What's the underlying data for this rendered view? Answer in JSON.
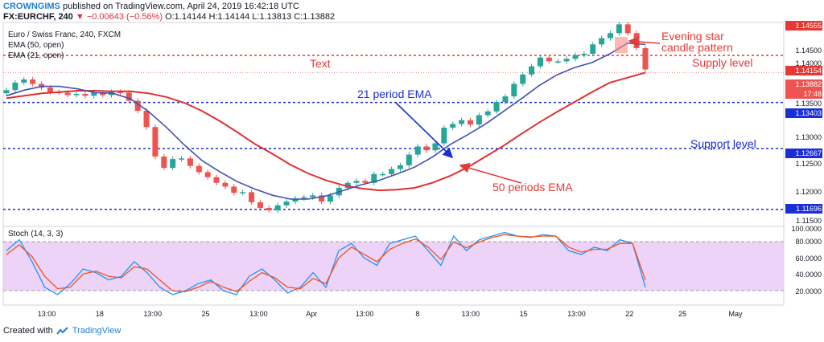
{
  "header": {
    "user": "CROWNGIMS",
    "published": "published on TradingView.com, April 24, 2019 16:42:18 UTC",
    "symbol": "FX:EURCHF, 240",
    "change_icon": "down-triangle-icon",
    "change": "−0.00643 (−0.56%)",
    "ohlc": "O:1.14144 H:1.14144 L:1.13813 C:1.13882"
  },
  "legend": {
    "title": "Euro / Swiss Franc, 240, FXCM",
    "ema50": "EMA (50, open)",
    "ema21": "EMA (21, open)"
  },
  "annotations": {
    "text": "Text",
    "supply": "Supply level",
    "support": "Support level",
    "ema21": "21 period EMA",
    "ema50": "50 periods EMA",
    "evening1": "Evening star",
    "evening2": "candle pattern"
  },
  "price_axis": {
    "top_tag": "1.14555",
    "tick_1_145": "1.14500",
    "tick_1_140": "1.14000",
    "tag_supply": "1.14154",
    "tag_current": "1.13882",
    "countdown": "17:48",
    "tick_1_135": "1.13500",
    "tag_support1": "1.13403",
    "tick_1_130": "1.13000",
    "tag_support2": "1.12667",
    "tick_1_125": "1.12500",
    "tick_1_120": "1.12000",
    "tag_support3": "1.11696",
    "tick_1_115": "1.11500"
  },
  "stoch": {
    "label": "Stoch (14, 3, 3)",
    "t100": "100.0000",
    "t80": "80.0000",
    "t60": "60.0000",
    "t40": "40.0000",
    "t20": "20.0000"
  },
  "time_axis": [
    "13:00",
    "18",
    "13:00",
    "25",
    "13:00",
    "Apr",
    "13:00",
    "8",
    "13:00",
    "15",
    "13:00",
    "22",
    "25",
    "May"
  ],
  "footer": {
    "created": "Created with",
    "brand": "TradingView",
    "logo": "tradingview-logo-icon"
  },
  "colors": {
    "up": "#26a69a",
    "down": "#ef5350",
    "ema50": "#e03030",
    "ema21": "#3f51b5",
    "supply": "#e53935",
    "support": "#1a2fd6",
    "stoch_k": "#2196f3",
    "stoch_d": "#f4511e",
    "stoch_band": "#e7c8f5"
  },
  "chart_data": {
    "type": "candlestick",
    "instrument": "Euro / Swiss Franc, 240, FXCM",
    "ylim": [
      1.1145,
      1.1468
    ],
    "levels": {
      "supply": 1.14154,
      "current": 1.13882,
      "support": [
        1.13403,
        1.12667,
        1.11696
      ]
    },
    "close": [
      1.136,
      1.1372,
      1.1377,
      1.137,
      1.1364,
      1.1357,
      1.1356,
      1.1352,
      1.1354,
      1.1351,
      1.1356,
      1.1352,
      1.1357,
      1.1356,
      1.1343,
      1.1327,
      1.1301,
      1.1254,
      1.1236,
      1.125,
      1.1251,
      1.1239,
      1.1229,
      1.1221,
      1.1212,
      1.1206,
      1.1196,
      1.1197,
      1.1181,
      1.1172,
      1.1168,
      1.1176,
      1.1182,
      1.1187,
      1.1189,
      1.1192,
      1.1182,
      1.1192,
      1.1204,
      1.1212,
      1.1215,
      1.1212,
      1.1226,
      1.1226,
      1.1234,
      1.124,
      1.1257,
      1.127,
      1.1264,
      1.1275,
      1.13,
      1.1306,
      1.1312,
      1.1305,
      1.132,
      1.1326,
      1.1341,
      1.135,
      1.137,
      1.1385,
      1.1398,
      1.1412,
      1.1406,
      1.1406,
      1.141,
      1.1416,
      1.1418,
      1.1433,
      1.1443,
      1.1451,
      1.1465,
      1.1451,
      1.1427,
      1.1393
    ],
    "ema50": [
      1.1347,
      1.1351,
      1.1355,
      1.1357,
      1.1359,
      1.1359,
      1.1358,
      1.1358,
      1.1355,
      1.1349,
      1.134,
      1.1327,
      1.1311,
      1.1293,
      1.1274,
      1.1258,
      1.1241,
      1.1227,
      1.1216,
      1.1208,
      1.1203,
      1.12,
      1.1201,
      1.1204,
      1.1212,
      1.1223,
      1.1237,
      1.1254,
      1.1271,
      1.129,
      1.1308,
      1.1325,
      1.1341,
      1.1357,
      1.1372,
      1.138,
      1.1388
    ],
    "ema21": [
      1.1351,
      1.136,
      1.1366,
      1.1366,
      1.1362,
      1.1356,
      1.1355,
      1.1346,
      1.1326,
      1.1301,
      1.1273,
      1.1248,
      1.123,
      1.1214,
      1.1202,
      1.1192,
      1.1186,
      1.1186,
      1.1191,
      1.12,
      1.1209,
      1.1216,
      1.1226,
      1.1237,
      1.1253,
      1.1273,
      1.1289,
      1.1306,
      1.1326,
      1.1346,
      1.1367,
      1.1384,
      1.1396,
      1.1404,
      1.1418,
      1.1435,
      1.1433
    ],
    "stoch_k": [
      70,
      85,
      55,
      20,
      10,
      25,
      45,
      40,
      30,
      35,
      55,
      40,
      20,
      10,
      15,
      25,
      30,
      15,
      10,
      35,
      45,
      30,
      12,
      20,
      40,
      20,
      70,
      80,
      60,
      50,
      80,
      85,
      90,
      70,
      50,
      90,
      70,
      85,
      90,
      95,
      90,
      88,
      92,
      90,
      70,
      65,
      75,
      70,
      85,
      80,
      20
    ],
    "stoch_d": [
      65,
      78,
      62,
      35,
      18,
      20,
      38,
      42,
      35,
      33,
      48,
      45,
      30,
      15,
      14,
      20,
      28,
      20,
      14,
      28,
      40,
      33,
      20,
      18,
      32,
      25,
      60,
      75,
      65,
      55,
      72,
      80,
      86,
      75,
      58,
      82,
      74,
      82,
      88,
      92,
      90,
      89,
      90,
      90,
      75,
      68,
      72,
      72,
      80,
      80,
      30
    ]
  }
}
